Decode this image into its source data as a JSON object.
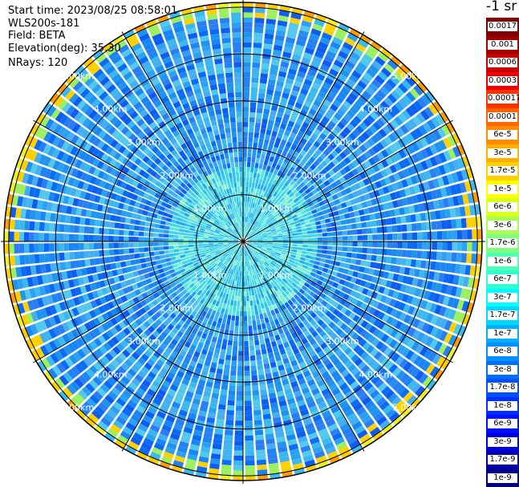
{
  "info": {
    "start_time": "Start time: 2023/08/25 08:58:01",
    "device": "WLS200s-181",
    "field": "Field: BETA",
    "elevation": "Elevation(deg): 35.30",
    "nrays": "NRays: 120"
  },
  "unit": "-1 sr",
  "range_rings": [
    {
      "label": "1.00km",
      "km": 1
    },
    {
      "label": "2.00km",
      "km": 2
    },
    {
      "label": "3.00km",
      "km": 3
    },
    {
      "label": "4.00km",
      "km": 4
    },
    {
      "label": "5.00km",
      "km": 5
    }
  ],
  "max_range_km": 5.1,
  "colorbar": [
    {
      "label": "0.0017",
      "color": "#7f0000"
    },
    {
      "label": "0.001",
      "color": "#a00000"
    },
    {
      "label": "0.0006",
      "color": "#c80000"
    },
    {
      "label": "0.0003",
      "color": "#f00000"
    },
    {
      "label": "0.00017",
      "color": "#ff3300"
    },
    {
      "label": "0.0001",
      "color": "#ff6600"
    },
    {
      "label": "6e-5",
      "color": "#ff8c00"
    },
    {
      "label": "3e-5",
      "color": "#ffb000"
    },
    {
      "label": "1.7e-5",
      "color": "#ffd000"
    },
    {
      "label": "1e-5",
      "color": "#ffff00"
    },
    {
      "label": "6e-6",
      "color": "#d8ff20"
    },
    {
      "label": "3e-6",
      "color": "#a8ff50"
    },
    {
      "label": "1.7e-6",
      "color": "#7fff80"
    },
    {
      "label": "1e-6",
      "color": "#50ffb0"
    },
    {
      "label": "6e-7",
      "color": "#30ffd0"
    },
    {
      "label": "3e-7",
      "color": "#00ffff"
    },
    {
      "label": "1.7e-7",
      "color": "#00d8ff"
    },
    {
      "label": "1e-7",
      "color": "#00b0ff"
    },
    {
      "label": "6e-8",
      "color": "#0090ff"
    },
    {
      "label": "3e-8",
      "color": "#0070ff"
    },
    {
      "label": "1.7e-8",
      "color": "#0050ff"
    },
    {
      "label": "1e-8",
      "color": "#0030ff"
    },
    {
      "label": "6e-9",
      "color": "#0010ff"
    },
    {
      "label": "3e-9",
      "color": "#0000e0"
    },
    {
      "label": "1.7e-9",
      "color": "#0000b0"
    },
    {
      "label": "1e-9",
      "color": "#000080"
    }
  ]
}
